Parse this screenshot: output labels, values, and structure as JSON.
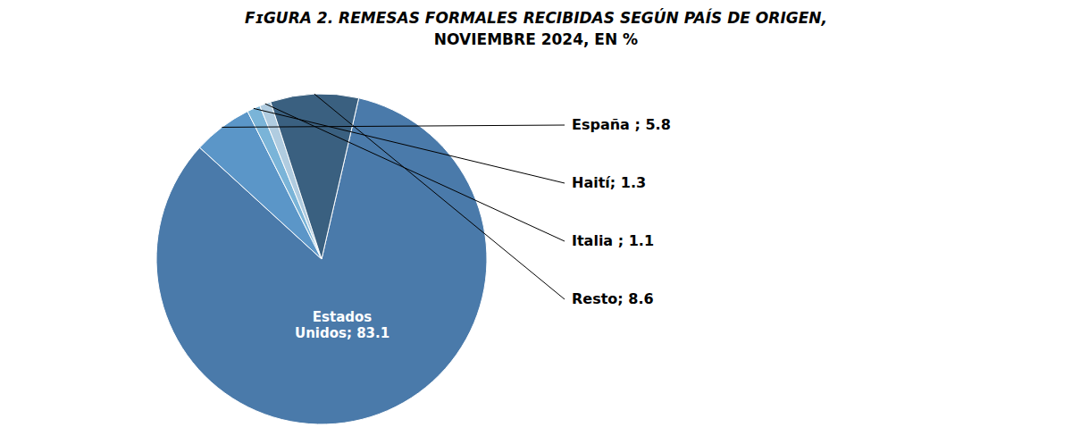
{
  "chart_data": {
    "type": "pie",
    "title": "FɪGURA 2. REMESAS FORMALES RECIBIDAS SEGÚN PAÍS DE ORIGEN,",
    "subtitle": "NOVIEMBRE 2024, EN %",
    "labels": [
      "Estados\nUnidos; 83.1",
      "España ; 5.8",
      "Haití; 1.3",
      "Italia ; 1.1",
      "Resto; 8.6"
    ],
    "values": [
      83.1,
      5.8,
      1.3,
      1.1,
      8.6
    ],
    "colors": [
      "#4a7aaa",
      "#5b96c8",
      "#7ab4d8",
      "#b0cce0",
      "#3a6080"
    ]
  }
}
